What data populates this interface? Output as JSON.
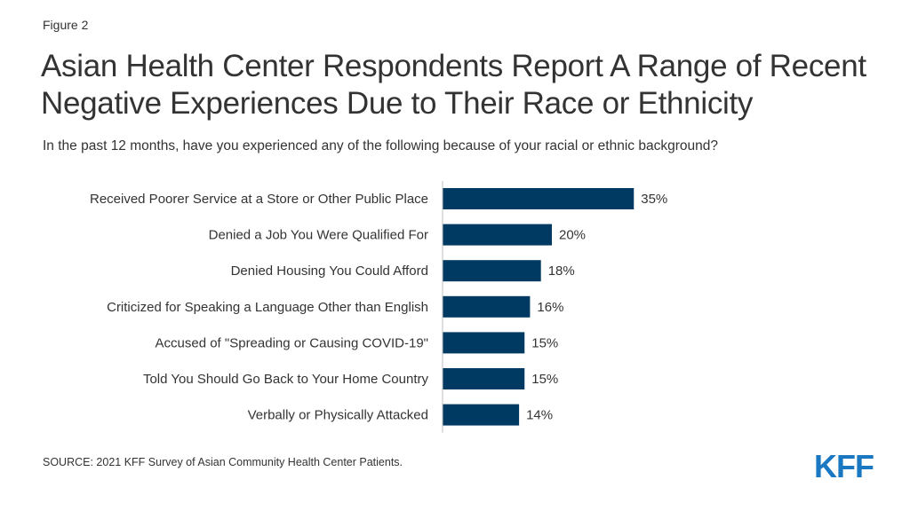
{
  "figure_label": "Figure 2",
  "title": "Asian Health Center Respondents Report A Range of Recent Negative Experiences Due to Their Race or Ethnicity",
  "subtitle": "In the past 12 months, have you experienced any of the following because of your racial or ethnic background?",
  "source": "SOURCE: 2021 KFF Survey of Asian Community Health Center Patients.",
  "logo_text": "KFF",
  "colors": {
    "bar": "#003a62",
    "logo": "#1a78c2",
    "axis": "#bfbfbf",
    "text": "#333333"
  },
  "chart_data": {
    "type": "bar",
    "orientation": "horizontal",
    "categories": [
      "Received Poorer Service at a Store or Other Public Place",
      "Denied a Job You Were Qualified For",
      "Denied Housing You Could Afford",
      "Criticized for Speaking a Language Other than English",
      "Accused of \"Spreading or Causing COVID-19\"",
      "Told You Should Go Back to Your Home Country",
      "Verbally or Physically Attacked"
    ],
    "values": [
      35,
      20,
      18,
      16,
      15,
      15,
      14
    ],
    "data_labels": [
      "35%",
      "20%",
      "18%",
      "16%",
      "15%",
      "15%",
      "14%"
    ],
    "xlim": [
      0,
      100
    ],
    "grid": false,
    "legend": "none"
  }
}
